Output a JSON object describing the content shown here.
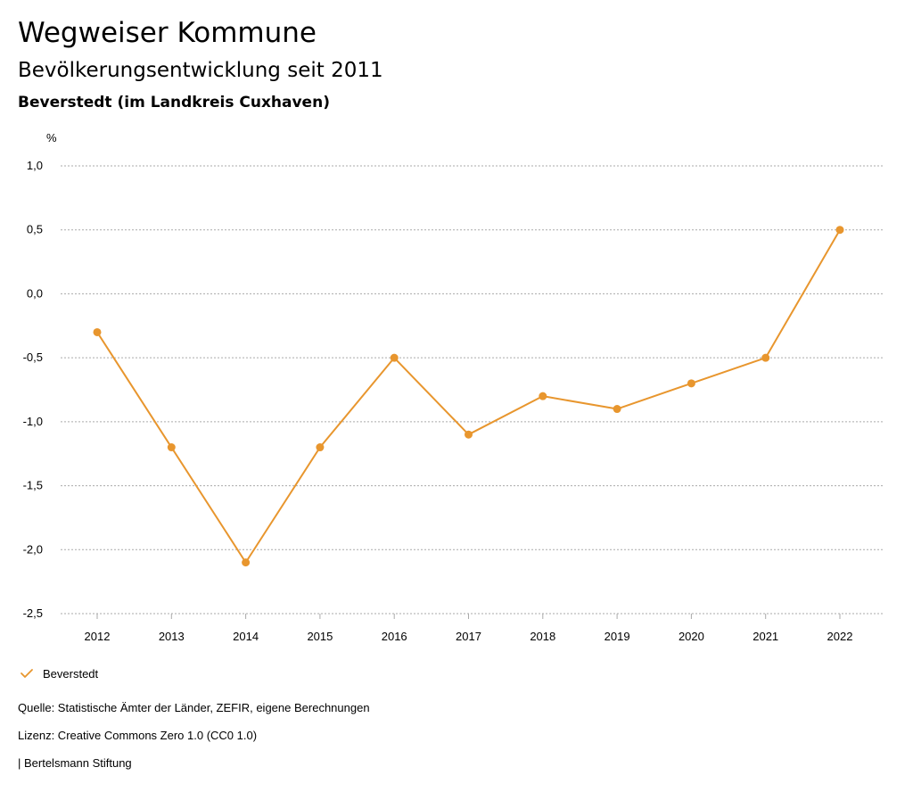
{
  "header": {
    "title": "Wegweiser Kommune",
    "subtitle": "Bevölkerungsentwicklung seit 2011",
    "region": "Beverstedt (im Landkreis Cuxhaven)"
  },
  "legend": {
    "series_label": "Beverstedt",
    "icon": "check-icon"
  },
  "footer": {
    "source": "Quelle: Statistische Ämter der Länder, ZEFIR, eigene Berechnungen",
    "license": "Lizenz: Creative Commons Zero 1.0 (CC0 1.0)",
    "publisher": "| Bertelsmann Stiftung"
  },
  "colors": {
    "series": "#e8962e",
    "grid": "#aaaaaa",
    "text": "#000000"
  },
  "chart_data": {
    "type": "line",
    "ylabel": "%",
    "xlabel": "",
    "ylim": [
      -2.5,
      1.0
    ],
    "yticks": [
      1.0,
      0.5,
      0.0,
      -0.5,
      -1.0,
      -1.5,
      -2.0,
      -2.5
    ],
    "ytick_labels": [
      "1,0",
      "0,5",
      "0,0",
      "-0,5",
      "-1,0",
      "-1,5",
      "-2,0",
      "-2,5"
    ],
    "categories": [
      "2012",
      "2013",
      "2014",
      "2015",
      "2016",
      "2017",
      "2018",
      "2019",
      "2020",
      "2021",
      "2022"
    ],
    "series": [
      {
        "name": "Beverstedt",
        "values": [
          -0.3,
          -1.2,
          -2.1,
          -1.2,
          -0.5,
          -1.1,
          -0.8,
          -0.9,
          -0.7,
          -0.5,
          0.5
        ]
      }
    ],
    "grid": true,
    "grid_style": "dotted",
    "legend_position": "bottom-left"
  }
}
